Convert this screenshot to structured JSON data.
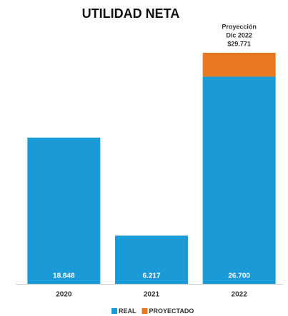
{
  "chart_data": {
    "type": "stacked_bar",
    "title": "UTILIDAD NETA",
    "categories": [
      "2020",
      "2021",
      "2022"
    ],
    "series": [
      {
        "name": "REAL",
        "color": "#1a9ad6",
        "values": [
          18848,
          6217,
          26700
        ],
        "value_labels": [
          "18.848",
          "6.217",
          "26.700"
        ]
      },
      {
        "name": "PROYECTADO",
        "color": "#e87722",
        "values": [
          null,
          null,
          3071
        ]
      }
    ],
    "annotation": [
      "Proyección",
      "Dic 2022",
      "$29.771"
    ]
  }
}
